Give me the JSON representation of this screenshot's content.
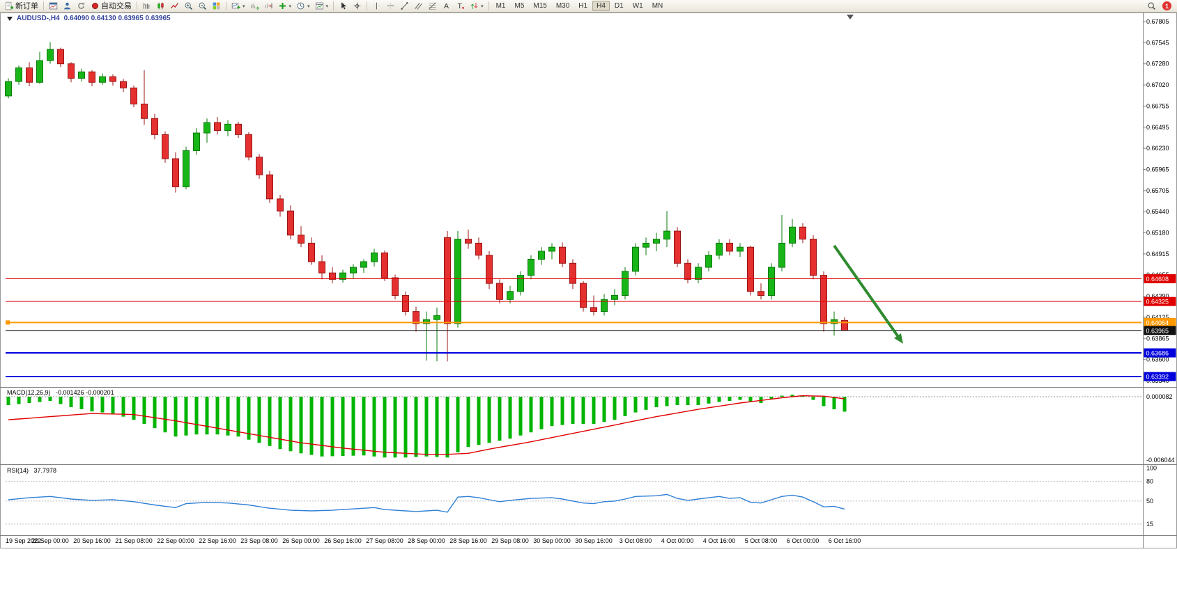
{
  "toolbar": {
    "items": [
      {
        "t": "btn",
        "icon": "new-order-icon",
        "label": "新订单"
      },
      {
        "t": "sep"
      },
      {
        "t": "btn",
        "icon": "charts-window-icon"
      },
      {
        "t": "btn",
        "icon": "market-watch-icon"
      },
      {
        "t": "btn",
        "icon": "refresh-icon"
      },
      {
        "t": "btn",
        "icon": "autotrading-icon",
        "label": "自动交易"
      },
      {
        "t": "sep"
      },
      {
        "t": "btn",
        "icon": "bar-chart-icon"
      },
      {
        "t": "btn",
        "icon": "candlestick-chart-icon"
      },
      {
        "t": "btn",
        "icon": "line-chart-icon"
      },
      {
        "t": "btn",
        "icon": "zoom-in-icon"
      },
      {
        "t": "btn",
        "icon": "zoom-out-icon"
      },
      {
        "t": "btn",
        "icon": "tile-windows-icon"
      },
      {
        "t": "sep"
      },
      {
        "t": "btn",
        "icon": "new-chart-icon",
        "caret": true
      },
      {
        "t": "btn",
        "icon": "auto-scroll-icon"
      },
      {
        "t": "btn",
        "icon": "chart-shift-icon"
      },
      {
        "t": "btn",
        "icon": "indicators-icon",
        "caret": true
      },
      {
        "t": "btn",
        "icon": "periods-icon",
        "caret": true
      },
      {
        "t": "btn",
        "icon": "templates-icon",
        "caret": true
      },
      {
        "t": "sep"
      },
      {
        "t": "btn",
        "icon": "cursor-icon"
      },
      {
        "t": "btn",
        "icon": "crosshair-icon"
      },
      {
        "t": "sep"
      },
      {
        "t": "btn",
        "icon": "vertical-line-icon"
      },
      {
        "t": "btn",
        "icon": "horizontal-line-icon"
      },
      {
        "t": "btn",
        "icon": "trendline-icon"
      },
      {
        "t": "btn",
        "icon": "channel-icon"
      },
      {
        "t": "btn",
        "icon": "fibonacci-icon"
      },
      {
        "t": "btn",
        "icon": "text-icon"
      },
      {
        "t": "btn",
        "icon": "label-icon"
      },
      {
        "t": "btn",
        "icon": "arrows-icon",
        "caret": true
      },
      {
        "t": "sep"
      }
    ],
    "timeframes": [
      "M1",
      "M5",
      "M15",
      "M30",
      "H1",
      "H4",
      "D1",
      "W1",
      "MN"
    ],
    "active_timeframe": "H4",
    "notification_count": "1"
  },
  "chart": {
    "title_symbol": "AUDUSD-,H4",
    "title_ohlc": "0.64090 0.64130 0.63965 0.63965"
  },
  "chart_data": {
    "type": "candlestick",
    "symbol": "AUDUSD-",
    "timeframe": "H4",
    "last_bar": {
      "open": "0.64090",
      "high": "0.64130",
      "low": "0.63965",
      "close": "0.63965"
    },
    "y_max": 0.67805,
    "y_min": 0.6334,
    "y_axis_labels": [
      "0.67805",
      "0.67545",
      "0.67280",
      "0.67020",
      "0.66755",
      "0.66495",
      "0.66230",
      "0.65965",
      "0.65705",
      "0.65440",
      "0.65180",
      "0.64915",
      "0.64655",
      "0.64390",
      "0.64125",
      "0.63865",
      "0.63600",
      "0.63340"
    ],
    "x_labels": [
      "19 Sep 2022",
      "20 Sep 00:00",
      "20 Sep 16:00",
      "21 Sep 08:00",
      "22 Sep 00:00",
      "22 Sep 16:00",
      "23 Sep 08:00",
      "26 Sep 00:00",
      "26 Sep 16:00",
      "27 Sep 08:00",
      "28 Sep 00:00",
      "28 Sep 16:00",
      "29 Sep 08:00",
      "30 Sep 00:00",
      "30 Sep 16:00",
      "3 Oct 08:00",
      "4 Oct 00:00",
      "4 Oct 16:00",
      "5 Oct 08:00",
      "6 Oct 00:00",
      "6 Oct 16:00"
    ],
    "candles": [
      [
        0.6688,
        0.671,
        0.6685,
        0.6706
      ],
      [
        0.6706,
        0.6726,
        0.6702,
        0.6723
      ],
      [
        0.6723,
        0.673,
        0.67,
        0.6705
      ],
      [
        0.6705,
        0.6743,
        0.6703,
        0.6732
      ],
      [
        0.6732,
        0.6755,
        0.6728,
        0.6746
      ],
      [
        0.6746,
        0.6748,
        0.6724,
        0.6728
      ],
      [
        0.6728,
        0.673,
        0.6705,
        0.671
      ],
      [
        0.671,
        0.6722,
        0.6706,
        0.6718
      ],
      [
        0.6718,
        0.672,
        0.67,
        0.6705
      ],
      [
        0.6705,
        0.6716,
        0.6702,
        0.6712
      ],
      [
        0.6712,
        0.6715,
        0.6701,
        0.6706
      ],
      [
        0.6706,
        0.6709,
        0.6693,
        0.6698
      ],
      [
        0.6698,
        0.6701,
        0.6674,
        0.6678
      ],
      [
        0.6678,
        0.672,
        0.6652,
        0.666
      ],
      [
        0.666,
        0.6666,
        0.6634,
        0.664
      ],
      [
        0.664,
        0.6644,
        0.6605,
        0.661
      ],
      [
        0.661,
        0.6618,
        0.6568,
        0.6575
      ],
      [
        0.6575,
        0.6625,
        0.6572,
        0.662
      ],
      [
        0.662,
        0.6648,
        0.6615,
        0.6642
      ],
      [
        0.6642,
        0.666,
        0.663,
        0.6655
      ],
      [
        0.6655,
        0.6662,
        0.664,
        0.6645
      ],
      [
        0.6645,
        0.6658,
        0.6638,
        0.6653
      ],
      [
        0.6653,
        0.6656,
        0.6636,
        0.664
      ],
      [
        0.664,
        0.6643,
        0.6608,
        0.6612
      ],
      [
        0.6612,
        0.6616,
        0.6585,
        0.659
      ],
      [
        0.659,
        0.6595,
        0.6555,
        0.656
      ],
      [
        0.656,
        0.6565,
        0.6538,
        0.6545
      ],
      [
        0.6545,
        0.6552,
        0.651,
        0.6515
      ],
      [
        0.6515,
        0.6526,
        0.65,
        0.6505
      ],
      [
        0.6505,
        0.6512,
        0.6478,
        0.6482
      ],
      [
        0.6482,
        0.649,
        0.646,
        0.6468
      ],
      [
        0.6468,
        0.6475,
        0.6455,
        0.646
      ],
      [
        0.646,
        0.6472,
        0.6456,
        0.6468
      ],
      [
        0.6468,
        0.6479,
        0.6461,
        0.6475
      ],
      [
        0.6475,
        0.6485,
        0.6468,
        0.6482
      ],
      [
        0.6482,
        0.6498,
        0.6476,
        0.6493
      ],
      [
        0.6493,
        0.6496,
        0.6458,
        0.6462
      ],
      [
        0.6462,
        0.6466,
        0.6435,
        0.644
      ],
      [
        0.644,
        0.6445,
        0.6415,
        0.642
      ],
      [
        0.642,
        0.6426,
        0.6395,
        0.6405
      ],
      [
        0.6405,
        0.642,
        0.6359,
        0.641
      ],
      [
        0.641,
        0.6425,
        0.6358,
        0.6415
      ],
      [
        0.6512,
        0.652,
        0.6358,
        0.6405
      ],
      [
        0.6405,
        0.652,
        0.64,
        0.651
      ],
      [
        0.651,
        0.6522,
        0.6498,
        0.6505
      ],
      [
        0.6505,
        0.6512,
        0.6485,
        0.649
      ],
      [
        0.649,
        0.6495,
        0.6448,
        0.6455
      ],
      [
        0.6455,
        0.646,
        0.643,
        0.6435
      ],
      [
        0.6435,
        0.6452,
        0.643,
        0.6445
      ],
      [
        0.6445,
        0.647,
        0.644,
        0.6465
      ],
      [
        0.6465,
        0.649,
        0.646,
        0.6485
      ],
      [
        0.6485,
        0.65,
        0.6478,
        0.6495
      ],
      [
        0.6495,
        0.6505,
        0.6485,
        0.65
      ],
      [
        0.65,
        0.6506,
        0.6475,
        0.648
      ],
      [
        0.648,
        0.6485,
        0.6448,
        0.6455
      ],
      [
        0.6455,
        0.6458,
        0.642,
        0.6425
      ],
      [
        0.6425,
        0.644,
        0.6415,
        0.642
      ],
      [
        0.642,
        0.6442,
        0.6415,
        0.6435
      ],
      [
        0.6435,
        0.6448,
        0.6428,
        0.644
      ],
      [
        0.644,
        0.6475,
        0.6435,
        0.647
      ],
      [
        0.647,
        0.6505,
        0.6465,
        0.65
      ],
      [
        0.65,
        0.6512,
        0.649,
        0.6505
      ],
      [
        0.6505,
        0.6518,
        0.6495,
        0.651
      ],
      [
        0.651,
        0.6545,
        0.65,
        0.652
      ],
      [
        0.652,
        0.6525,
        0.6475,
        0.648
      ],
      [
        0.648,
        0.6485,
        0.6455,
        0.646
      ],
      [
        0.646,
        0.648,
        0.6455,
        0.6475
      ],
      [
        0.6475,
        0.6495,
        0.647,
        0.649
      ],
      [
        0.649,
        0.651,
        0.6485,
        0.6505
      ],
      [
        0.6505,
        0.651,
        0.649,
        0.6495
      ],
      [
        0.6495,
        0.6505,
        0.6488,
        0.65
      ],
      [
        0.65,
        0.6502,
        0.644,
        0.6445
      ],
      [
        0.6445,
        0.6455,
        0.6435,
        0.644
      ],
      [
        0.644,
        0.648,
        0.6435,
        0.6475
      ],
      [
        0.6475,
        0.654,
        0.647,
        0.6505
      ],
      [
        0.6505,
        0.6535,
        0.65,
        0.6525
      ],
      [
        0.6525,
        0.653,
        0.6505,
        0.651
      ],
      [
        0.651,
        0.6515,
        0.646,
        0.6465
      ],
      [
        0.6465,
        0.647,
        0.6395,
        0.6405
      ],
      [
        0.6405,
        0.642,
        0.639,
        0.641
      ],
      [
        0.6409,
        0.6413,
        0.63965,
        0.63965
      ]
    ],
    "levels": [
      {
        "price": "0.64608",
        "value": 0.64608,
        "color": "#e00000",
        "width": 1
      },
      {
        "price": "0.64325",
        "value": 0.64325,
        "color": "#e00000",
        "width": 1
      },
      {
        "price": "0.64064",
        "value": 0.64064,
        "color": "#ff9900",
        "width": 2,
        "handle": true
      },
      {
        "price": "0.63965",
        "value": 0.63965,
        "color": "#111111",
        "width": 1
      },
      {
        "price": "0.63686",
        "value": 0.63686,
        "color": "#0000dd",
        "width": 2
      },
      {
        "price": "0.63392",
        "value": 0.63392,
        "color": "#0000dd",
        "width": 2
      }
    ],
    "arrow": {
      "from_bar": 79,
      "from_price": 0.6502,
      "to_bar": 85.6,
      "to_price": 0.638,
      "color": "#2e8b2e"
    },
    "macd": {
      "label": "MACD(12,26,9)",
      "values_text": "-0.001426 -0.000201",
      "axis_max_label": "0.000082",
      "axis_min_label": "-0.006044",
      "histogram_anchors": [
        [
          0,
          -0.0008
        ],
        [
          2,
          -0.0006
        ],
        [
          4,
          -0.0004
        ],
        [
          6,
          -0.001
        ],
        [
          8,
          -0.0014
        ],
        [
          10,
          -0.0016
        ],
        [
          12,
          -0.0022
        ],
        [
          14,
          -0.003
        ],
        [
          16,
          -0.0038
        ],
        [
          18,
          -0.0036
        ],
        [
          20,
          -0.0036
        ],
        [
          22,
          -0.0038
        ],
        [
          24,
          -0.0044
        ],
        [
          26,
          -0.005
        ],
        [
          28,
          -0.0054
        ],
        [
          30,
          -0.0057
        ],
        [
          34,
          -0.0056
        ],
        [
          36,
          -0.0058
        ],
        [
          38,
          -0.0058
        ],
        [
          40,
          -0.0057
        ],
        [
          42,
          -0.0058
        ],
        [
          44,
          -0.0048
        ],
        [
          46,
          -0.0044
        ],
        [
          48,
          -0.004
        ],
        [
          50,
          -0.0034
        ],
        [
          52,
          -0.0028
        ],
        [
          54,
          -0.0026
        ],
        [
          56,
          -0.0026
        ],
        [
          58,
          -0.0022
        ],
        [
          60,
          -0.0015
        ],
        [
          62,
          -0.001
        ],
        [
          64,
          -0.0008
        ],
        [
          66,
          -0.0008
        ],
        [
          68,
          -0.0005
        ],
        [
          70,
          -0.0003
        ],
        [
          72,
          -0.0006
        ],
        [
          74,
          0.0001
        ],
        [
          75,
          0.0002
        ],
        [
          76,
          0.0001
        ],
        [
          77,
          -0.0003
        ],
        [
          78,
          -0.0009
        ],
        [
          79,
          -0.0012
        ],
        [
          80,
          -0.001426
        ]
      ],
      "signal_anchors": [
        [
          0,
          -0.0022
        ],
        [
          4,
          -0.0019
        ],
        [
          8,
          -0.0016
        ],
        [
          12,
          -0.0017
        ],
        [
          16,
          -0.0023
        ],
        [
          20,
          -0.003
        ],
        [
          24,
          -0.0037
        ],
        [
          28,
          -0.0044
        ],
        [
          32,
          -0.0049
        ],
        [
          36,
          -0.0053
        ],
        [
          40,
          -0.0055
        ],
        [
          42,
          -0.0055
        ],
        [
          44,
          -0.0054
        ],
        [
          46,
          -0.005
        ],
        [
          50,
          -0.0043
        ],
        [
          54,
          -0.0035
        ],
        [
          58,
          -0.0027
        ],
        [
          62,
          -0.0019
        ],
        [
          66,
          -0.0012
        ],
        [
          70,
          -0.0006
        ],
        [
          74,
          -0.0001
        ],
        [
          76,
          0.0001
        ],
        [
          78,
          5e-05
        ],
        [
          80,
          -0.000201
        ]
      ]
    },
    "rsi": {
      "label": "RSI(14)",
      "value_text": "37.7978",
      "axis_labels": [
        "100",
        "80",
        "50",
        "15"
      ],
      "level_values": [
        80,
        50,
        15
      ],
      "line_anchors": [
        [
          0,
          52
        ],
        [
          2,
          55
        ],
        [
          4,
          57
        ],
        [
          6,
          53
        ],
        [
          8,
          51
        ],
        [
          10,
          52
        ],
        [
          12,
          49
        ],
        [
          14,
          44
        ],
        [
          16,
          40
        ],
        [
          17,
          46
        ],
        [
          19,
          48
        ],
        [
          21,
          47
        ],
        [
          23,
          44
        ],
        [
          25,
          39
        ],
        [
          27,
          36
        ],
        [
          29,
          35
        ],
        [
          31,
          36
        ],
        [
          33,
          38
        ],
        [
          35,
          40
        ],
        [
          36,
          37
        ],
        [
          38,
          35
        ],
        [
          39,
          34
        ],
        [
          41,
          36
        ],
        [
          42,
          33
        ],
        [
          43,
          56
        ],
        [
          44,
          57
        ],
        [
          45,
          55
        ],
        [
          46,
          52
        ],
        [
          47,
          49
        ],
        [
          48,
          51
        ],
        [
          50,
          54
        ],
        [
          52,
          55
        ],
        [
          53,
          53
        ],
        [
          54,
          50
        ],
        [
          55,
          47
        ],
        [
          56,
          46
        ],
        [
          57,
          49
        ],
        [
          58,
          50
        ],
        [
          59,
          53
        ],
        [
          60,
          57
        ],
        [
          62,
          58
        ],
        [
          63,
          60
        ],
        [
          64,
          54
        ],
        [
          65,
          51
        ],
        [
          66,
          53
        ],
        [
          67,
          55
        ],
        [
          68,
          57
        ],
        [
          69,
          54
        ],
        [
          70,
          55
        ],
        [
          71,
          48
        ],
        [
          72,
          47
        ],
        [
          73,
          52
        ],
        [
          74,
          57
        ],
        [
          75,
          59
        ],
        [
          76,
          56
        ],
        [
          77,
          49
        ],
        [
          78,
          41
        ],
        [
          79,
          42
        ],
        [
          80,
          37.8
        ]
      ]
    },
    "colors": {
      "candle_up": "#18b518",
      "candle_up_border": "#0b7a0b",
      "candle_down": "#e53030",
      "candle_down_border": "#991414",
      "macd_histogram": "#00b400",
      "macd_signal": "#e00000",
      "rsi_line": "#2f7fd6",
      "arrow": "#2e8b2e"
    }
  }
}
